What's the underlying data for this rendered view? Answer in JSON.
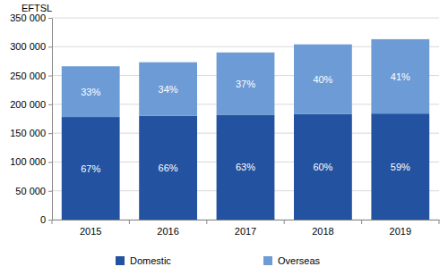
{
  "chart_data": {
    "type": "bar",
    "stacked": true,
    "y_label": "EFTSL",
    "categories": [
      "2015",
      "2016",
      "2017",
      "2018",
      "2019"
    ],
    "series": [
      {
        "name": "Domestic",
        "color": "#2352a0",
        "values": [
          178000,
          180000,
          182000,
          183000,
          184000
        ],
        "share_labels": [
          "67%",
          "66%",
          "63%",
          "60%",
          "59%"
        ]
      },
      {
        "name": "Overseas",
        "color": "#6d9bd6",
        "values": [
          88000,
          93000,
          108000,
          121000,
          129000
        ],
        "share_labels": [
          "33%",
          "34%",
          "37%",
          "40%",
          "41%"
        ]
      }
    ],
    "ylim": [
      0,
      350000
    ],
    "yticks": [
      0,
      {
        "value": 50000,
        "label": "50 000"
      },
      {
        "value": 100000,
        "label": "100 000"
      },
      {
        "value": 150000,
        "label": "150 000"
      },
      {
        "value": 200000,
        "label": "200 000"
      },
      {
        "value": 250000,
        "label": "250 000"
      },
      {
        "value": 300000,
        "label": "300 000"
      },
      {
        "value": 350000,
        "label": "350 000"
      }
    ],
    "grid": true,
    "legend": "bottom"
  }
}
